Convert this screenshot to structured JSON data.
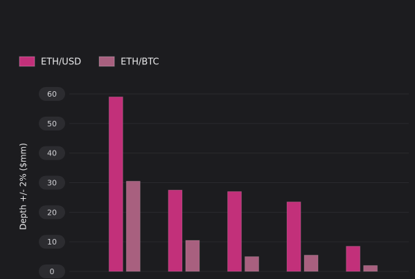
{
  "chart_data": {
    "type": "bar",
    "y_label": "Depth +/- 2% ($mm)",
    "categories": [
      null,
      null,
      null,
      null,
      null
    ],
    "series": [
      {
        "name": "ETH/USD",
        "color": "#c2307a",
        "values": [
          59,
          27.5,
          27,
          23.5,
          8.5
        ]
      },
      {
        "name": "ETH/BTC",
        "color": "#a8607f",
        "values": [
          30.5,
          10.5,
          5,
          5.5,
          2
        ]
      }
    ],
    "ylim": [
      0,
      60
    ],
    "yticks": [
      0,
      10,
      20,
      30,
      40,
      50,
      60
    ],
    "grid": true,
    "legend": "top-left"
  }
}
